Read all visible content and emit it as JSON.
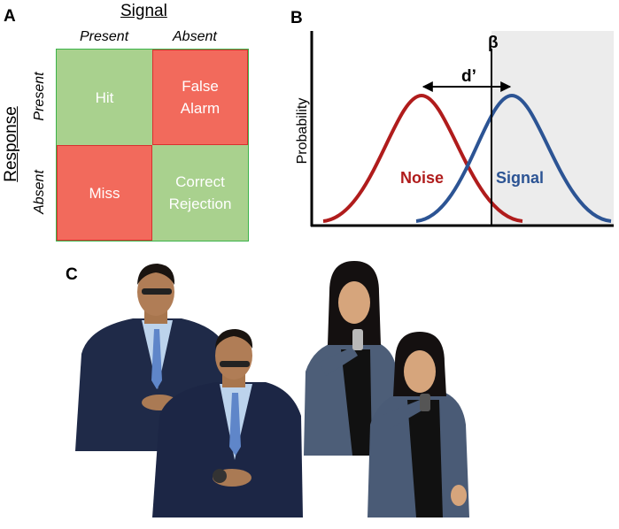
{
  "panel_a": {
    "label": "A",
    "column_title": "Signal",
    "columns": [
      "Present",
      "Absent"
    ],
    "row_title": "Response",
    "rows": [
      "Present",
      "Absent"
    ],
    "cells": [
      [
        "Hit",
        "False Alarm"
      ],
      [
        "Miss",
        "Correct Rejection"
      ]
    ]
  },
  "panel_b": {
    "label": "B",
    "criterion": "β",
    "distance": "d’",
    "y_label": "Probability",
    "curves": [
      "Noise",
      "Signal"
    ]
  },
  "panel_c": {
    "label": "C"
  }
}
